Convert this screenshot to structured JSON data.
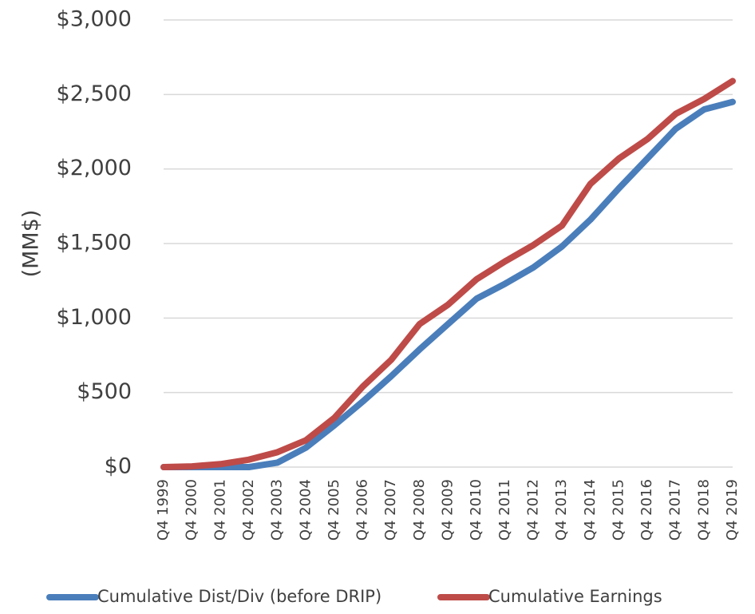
{
  "chart_data": {
    "type": "line",
    "y_label": "(MM$)",
    "categories": [
      "Q4 1999",
      "Q4 2000",
      "Q4 2001",
      "Q4 2002",
      "Q4 2003",
      "Q4 2004",
      "Q4 2005",
      "Q4 2006",
      "Q4 2007",
      "Q4 2008",
      "Q4 2009",
      "Q4 2010",
      "Q4 2011",
      "Q4 2012",
      "Q4 2013",
      "Q4 2014",
      "Q4 2015",
      "Q4 2016",
      "Q4 2017",
      "Q4 2018",
      "Q4 2019"
    ],
    "series": [
      {
        "name": "Cumulative Dist/Div (before DRIP)",
        "color": "#4a7ebb",
        "values": [
          0,
          0,
          0,
          0,
          30,
          130,
          280,
          440,
          610,
          790,
          960,
          1130,
          1230,
          1340,
          1480,
          1660,
          1870,
          2070,
          2270,
          2400,
          2450
        ]
      },
      {
        "name": "Cumulative Earnings",
        "color": "#be4b48",
        "values": [
          0,
          5,
          20,
          50,
          100,
          180,
          330,
          540,
          720,
          960,
          1090,
          1260,
          1380,
          1490,
          1620,
          1900,
          2070,
          2200,
          2370,
          2470,
          2590
        ]
      }
    ],
    "ylim": [
      0,
      3000
    ],
    "yticks": [
      {
        "value": 0,
        "label": "$0"
      },
      {
        "value": 500,
        "label": "$500"
      },
      {
        "value": 1000,
        "label": "$1,000"
      },
      {
        "value": 1500,
        "label": "$1,500"
      },
      {
        "value": 2000,
        "label": "$2,000"
      },
      {
        "value": 2500,
        "label": "$2,500"
      },
      {
        "value": 3000,
        "label": "$3,000"
      }
    ],
    "grid": true,
    "legend": "bottom"
  }
}
